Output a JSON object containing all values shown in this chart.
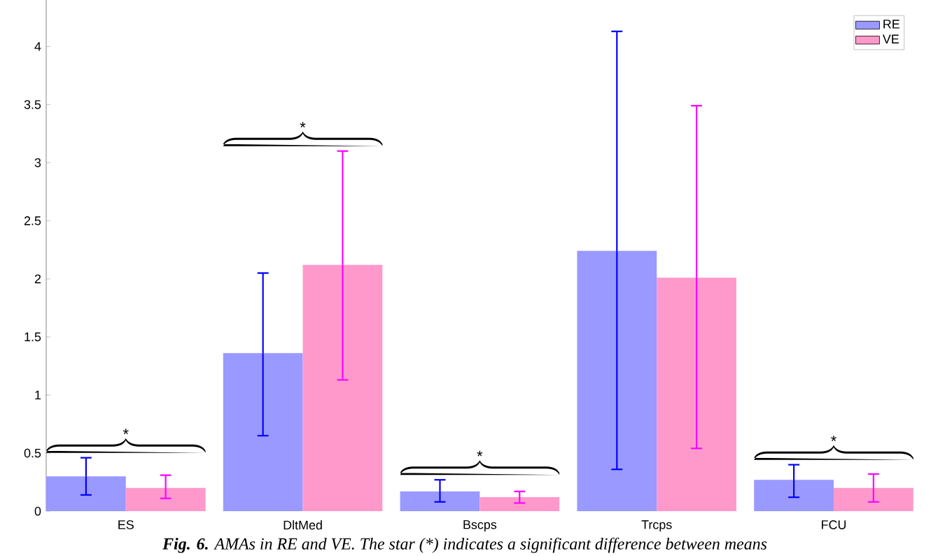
{
  "chart_data": {
    "type": "bar",
    "categories": [
      "ES",
      "DltMed",
      "Bscps",
      "Trcps",
      "FCU"
    ],
    "series": [
      {
        "name": "RE",
        "color": "#9999ff",
        "values": [
          0.3,
          1.36,
          0.17,
          2.24,
          0.27
        ],
        "errors": [
          [
            0.14,
            0.46
          ],
          [
            0.65,
            2.05
          ],
          [
            0.08,
            0.27
          ],
          [
            0.36,
            4.13
          ],
          [
            0.12,
            0.4
          ]
        ]
      },
      {
        "name": "VE",
        "color": "#ff99cc",
        "values": [
          0.2,
          2.12,
          0.12,
          2.01,
          0.2
        ],
        "errors": [
          [
            0.11,
            0.31
          ],
          [
            1.13,
            3.1
          ],
          [
            0.07,
            0.17
          ],
          [
            0.54,
            3.49
          ],
          [
            0.08,
            0.32
          ]
        ]
      }
    ],
    "ylim": [
      0,
      4.4
    ],
    "yticks": [
      0,
      0.5,
      1,
      1.5,
      2,
      2.5,
      3,
      3.5,
      4
    ],
    "legend": "top right",
    "annotations": [
      "*",
      "*",
      "*",
      "*",
      "**Fig. 6.** AMAs in RE and VE. The star (*) indicates a significant difference between means"
    ]
  }
}
